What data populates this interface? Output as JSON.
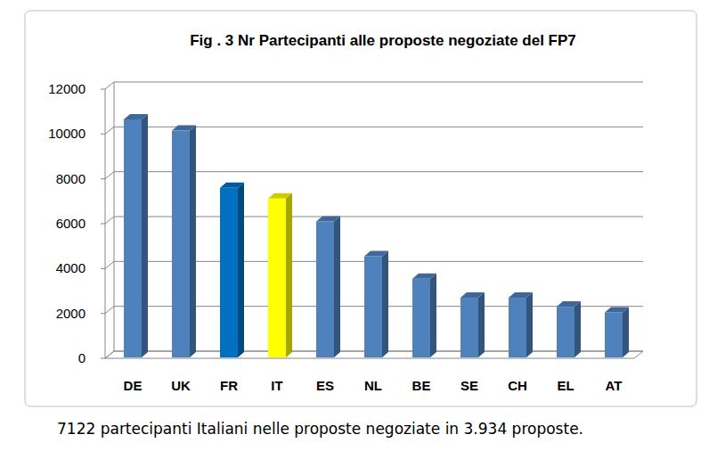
{
  "chart_data": {
    "type": "bar",
    "title": "Fig . 3  Nr Partecipanti alle proposte negoziate  del FP7",
    "categories": [
      "DE",
      "UK",
      "FR",
      "IT",
      "ES",
      "NL",
      "BE",
      "SE",
      "CH",
      "EL",
      "AT"
    ],
    "values": [
      10650,
      10150,
      7600,
      7122,
      6100,
      4550,
      3550,
      2700,
      2700,
      2300,
      2050
    ],
    "colors": [
      "#4f81bd",
      "#4f81bd",
      "#0070c0",
      "#ffff00",
      "#4f81bd",
      "#4f81bd",
      "#4f81bd",
      "#4f81bd",
      "#4f81bd",
      "#4f81bd",
      "#4f81bd"
    ],
    "ylim": [
      0,
      12000
    ],
    "yticks": [
      0,
      2000,
      4000,
      6000,
      8000,
      10000,
      12000
    ],
    "grid": true,
    "annotation": "7122 partecipanti Italiani nelle proposte negoziate in 3.934 proposte."
  }
}
